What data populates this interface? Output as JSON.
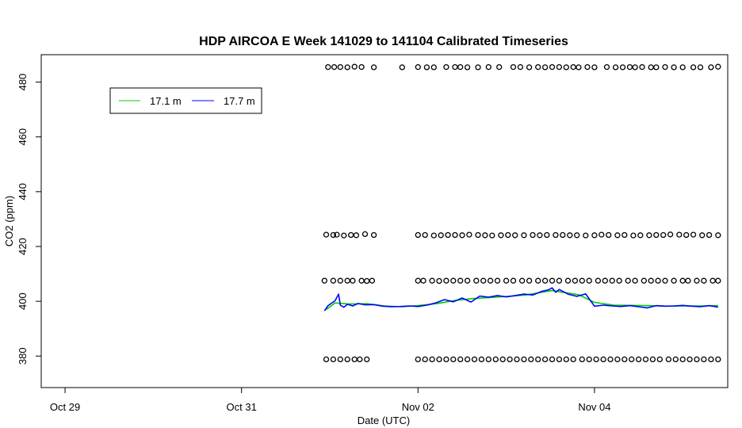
{
  "chart_data": {
    "type": "scatter",
    "title": "HDP AIRCOA E  Week 141029 to 141104  Calibrated Timeseries",
    "xlabel": "Date (UTC)",
    "ylabel": "CO2 (ppm)",
    "xlim_days": [
      28.73,
      36.51
    ],
    "ylim": [
      368.5,
      490
    ],
    "x_ticks": [
      {
        "label": "Oct 29",
        "day": 29
      },
      {
        "label": "Oct 31",
        "day": 31
      },
      {
        "label": "Nov 02",
        "day": 33
      },
      {
        "label": "Nov 04",
        "day": 35
      }
    ],
    "y_ticks": [
      380,
      400,
      420,
      440,
      460,
      480
    ],
    "legend": {
      "position": "top-left",
      "entries": [
        {
          "label": "17.1 m",
          "color": "#00cc00"
        },
        {
          "label": "17.7 m",
          "color": "#0000ff"
        }
      ]
    },
    "series": [
      {
        "name": "17.1 m",
        "color": "#00cc00",
        "style": "line",
        "x_day": [
          31.96,
          32.06,
          32.22,
          32.42,
          32.62,
          32.82,
          33.0,
          33.22,
          33.42,
          33.62,
          33.82,
          34.02,
          34.22,
          34.42,
          34.52,
          34.62,
          34.82,
          35.0,
          35.22,
          35.42,
          35.62,
          35.82,
          36.02,
          36.22,
          36.4
        ],
        "y": [
          397.0,
          399.4,
          399.0,
          399.1,
          398.3,
          398.0,
          398.4,
          399.2,
          400.3,
          401.0,
          401.4,
          401.8,
          402.3,
          403.4,
          403.9,
          403.4,
          402.4,
          399.6,
          398.6,
          398.5,
          398.4,
          398.2,
          398.3,
          398.3,
          398.4
        ]
      },
      {
        "name": "17.7 m",
        "color": "#0000ff",
        "style": "line",
        "x_day": [
          31.94,
          31.98,
          32.02,
          32.06,
          32.1,
          32.12,
          32.16,
          32.2,
          32.26,
          32.32,
          32.4,
          32.5,
          32.6,
          32.7,
          32.8,
          32.9,
          33.0,
          33.1,
          33.2,
          33.3,
          33.4,
          33.5,
          33.6,
          33.7,
          33.8,
          33.9,
          34.0,
          34.1,
          34.2,
          34.3,
          34.4,
          34.48,
          34.52,
          34.56,
          34.6,
          34.7,
          34.8,
          34.9,
          35.0,
          35.1,
          35.2,
          35.3,
          35.4,
          35.5,
          35.6,
          35.7,
          35.8,
          35.9,
          36.0,
          36.1,
          36.2,
          36.3,
          36.4
        ],
        "y": [
          396.5,
          398.4,
          399.3,
          400.2,
          402.6,
          398.6,
          397.8,
          398.9,
          398.3,
          399.2,
          398.7,
          398.8,
          398.2,
          398.0,
          398.1,
          398.3,
          398.1,
          398.6,
          399.4,
          400.6,
          399.8,
          401.2,
          399.7,
          401.9,
          401.5,
          402.1,
          401.6,
          402.1,
          402.6,
          402.3,
          403.6,
          404.2,
          404.9,
          403.3,
          404.3,
          402.6,
          401.8,
          402.7,
          398.2,
          398.6,
          398.3,
          398.1,
          398.4,
          398.0,
          397.6,
          398.4,
          398.2,
          398.3,
          398.5,
          398.2,
          398.0,
          398.4,
          397.9
        ]
      },
      {
        "name": "",
        "style": "points",
        "description_level": 485.5,
        "x_day": [
          31.98,
          32.05,
          32.12,
          32.2,
          32.28,
          32.36,
          32.5,
          32.82,
          33.0,
          33.1,
          33.18,
          33.32,
          33.42,
          33.48,
          33.56,
          33.68,
          33.8,
          33.92,
          34.08,
          34.16,
          34.26,
          34.36,
          34.44,
          34.52,
          34.6,
          34.68,
          34.76,
          34.82,
          34.92,
          35.0,
          35.14,
          35.24,
          35.32,
          35.4,
          35.46,
          35.54,
          35.64,
          35.7,
          35.8,
          35.9,
          36.0,
          36.12,
          36.2,
          36.32,
          36.4
        ],
        "y": [
          485.5,
          485.5,
          485.5,
          485.4,
          485.6,
          485.5,
          485.4,
          485.4,
          485.5,
          485.4,
          485.4,
          485.5,
          485.5,
          485.5,
          485.4,
          485.4,
          485.5,
          485.5,
          485.5,
          485.5,
          485.4,
          485.5,
          485.4,
          485.5,
          485.5,
          485.4,
          485.5,
          485.4,
          485.5,
          485.4,
          485.5,
          485.4,
          485.4,
          485.5,
          485.4,
          485.5,
          485.4,
          485.4,
          485.5,
          485.4,
          485.4,
          485.4,
          485.4,
          485.4,
          485.6
        ]
      },
      {
        "name": "",
        "style": "points",
        "x_day": [
          31.96,
          32.04,
          32.08,
          32.16,
          32.24,
          32.3,
          32.4,
          32.5,
          33.0,
          33.08,
          33.18,
          33.26,
          33.34,
          33.42,
          33.5,
          33.58,
          33.68,
          33.76,
          33.84,
          33.94,
          34.02,
          34.1,
          34.2,
          34.3,
          34.38,
          34.46,
          34.56,
          34.64,
          34.72,
          34.8,
          34.9,
          35.0,
          35.08,
          35.16,
          35.26,
          35.34,
          35.44,
          35.52,
          35.62,
          35.7,
          35.78,
          35.86,
          35.96,
          36.04,
          36.12,
          36.22,
          36.3,
          36.4
        ],
        "y": [
          424.3,
          424.2,
          424.3,
          424.0,
          424.2,
          424.1,
          424.5,
          424.2,
          424.2,
          424.2,
          424.0,
          424.1,
          424.2,
          424.2,
          424.1,
          424.3,
          424.2,
          424.1,
          424.0,
          424.1,
          424.2,
          424.1,
          424.1,
          424.2,
          424.1,
          424.2,
          424.2,
          424.2,
          424.1,
          424.1,
          424.0,
          424.1,
          424.3,
          424.2,
          424.1,
          424.2,
          424.0,
          424.1,
          424.1,
          424.2,
          424.2,
          424.4,
          424.3,
          424.2,
          424.3,
          424.1,
          424.2,
          424.1
        ]
      },
      {
        "name": "",
        "style": "points",
        "x_day": [
          31.94,
          32.04,
          32.12,
          32.2,
          32.26,
          32.36,
          32.42,
          32.48,
          33.0,
          33.06,
          33.16,
          33.24,
          33.32,
          33.4,
          33.48,
          33.56,
          33.66,
          33.74,
          33.82,
          33.9,
          34.0,
          34.08,
          34.18,
          34.26,
          34.36,
          34.44,
          34.52,
          34.6,
          34.7,
          34.78,
          34.86,
          34.94,
          35.04,
          35.12,
          35.2,
          35.28,
          35.38,
          35.46,
          35.56,
          35.64,
          35.72,
          35.8,
          35.9,
          36.0,
          36.06,
          36.16,
          36.24,
          36.34,
          36.4
        ],
        "y": [
          407.5,
          407.5,
          407.5,
          407.5,
          407.5,
          407.5,
          407.4,
          407.5,
          407.5,
          407.5,
          407.5,
          407.4,
          407.5,
          407.5,
          407.5,
          407.5,
          407.5,
          407.5,
          407.5,
          407.5,
          407.5,
          407.5,
          407.5,
          407.5,
          407.5,
          407.5,
          407.5,
          407.5,
          407.5,
          407.5,
          407.5,
          407.5,
          407.5,
          407.5,
          407.5,
          407.5,
          407.5,
          407.5,
          407.5,
          407.5,
          407.5,
          407.5,
          407.5,
          407.5,
          407.5,
          407.5,
          407.5,
          407.5,
          407.5
        ]
      },
      {
        "name": "",
        "style": "points",
        "x_day": [
          31.96,
          32.04,
          32.12,
          32.2,
          32.28,
          32.34,
          32.42,
          33.0,
          33.08,
          33.16,
          33.24,
          33.32,
          33.4,
          33.48,
          33.56,
          33.64,
          33.72,
          33.8,
          33.88,
          33.96,
          34.04,
          34.12,
          34.2,
          34.28,
          34.36,
          34.44,
          34.52,
          34.6,
          34.68,
          34.76,
          34.86,
          34.94,
          35.02,
          35.1,
          35.18,
          35.26,
          35.34,
          35.42,
          35.5,
          35.58,
          35.66,
          35.74,
          35.84,
          35.92,
          36.0,
          36.08,
          36.16,
          36.24,
          36.32,
          36.4
        ],
        "y": [
          378.8,
          378.8,
          378.8,
          378.8,
          378.8,
          378.8,
          378.8,
          378.8,
          378.8,
          378.8,
          378.8,
          378.8,
          378.8,
          378.8,
          378.8,
          378.8,
          378.8,
          378.8,
          378.8,
          378.8,
          378.8,
          378.8,
          378.8,
          378.8,
          378.8,
          378.8,
          378.8,
          378.8,
          378.8,
          378.8,
          378.8,
          378.8,
          378.8,
          378.8,
          378.8,
          378.8,
          378.8,
          378.8,
          378.8,
          378.8,
          378.8,
          378.8,
          378.8,
          378.8,
          378.8,
          378.8,
          378.8,
          378.8,
          378.8,
          378.8
        ]
      }
    ]
  }
}
